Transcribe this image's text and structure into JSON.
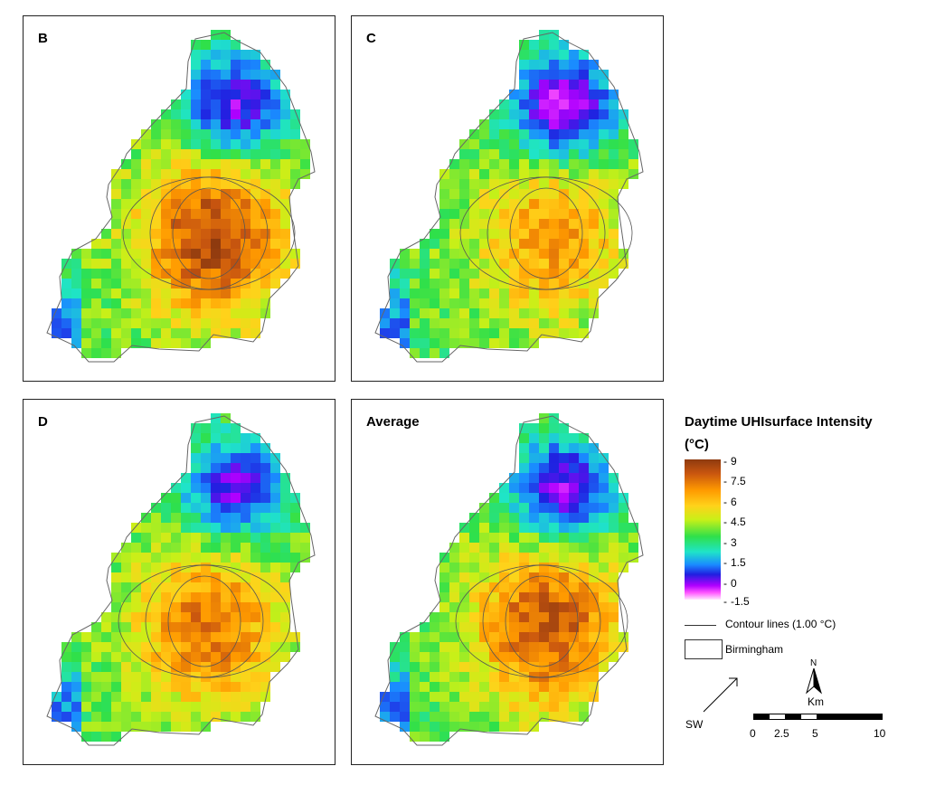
{
  "panels": {
    "b": {
      "label": "B"
    },
    "c": {
      "label": "C"
    },
    "d": {
      "label": "D"
    },
    "avg": {
      "label": "Average"
    }
  },
  "legend": {
    "title_line1": "Daytime UHIsurface Intensity",
    "title_line2": "(°C)",
    "ticks": [
      "9",
      "7.5",
      "6",
      "4.5",
      "3",
      "1.5",
      "0",
      "-1.5"
    ],
    "contour_label": "Contour lines (1.00 °C)",
    "boundary_label": "Birmingham"
  },
  "compass": {
    "north": "N"
  },
  "scale": {
    "unit": "Km",
    "labels": [
      "0",
      "2.5",
      "5",
      "10"
    ]
  },
  "direction": {
    "label": "SW"
  },
  "colors": {
    "very_hot": "#8e3a0f",
    "hot": "#ff9a00",
    "warm": "#ffd21a",
    "mild": "#2fe04a",
    "cool": "#1fe4c8",
    "cold": "#2020e0",
    "coldest": "#ff55ff"
  }
}
